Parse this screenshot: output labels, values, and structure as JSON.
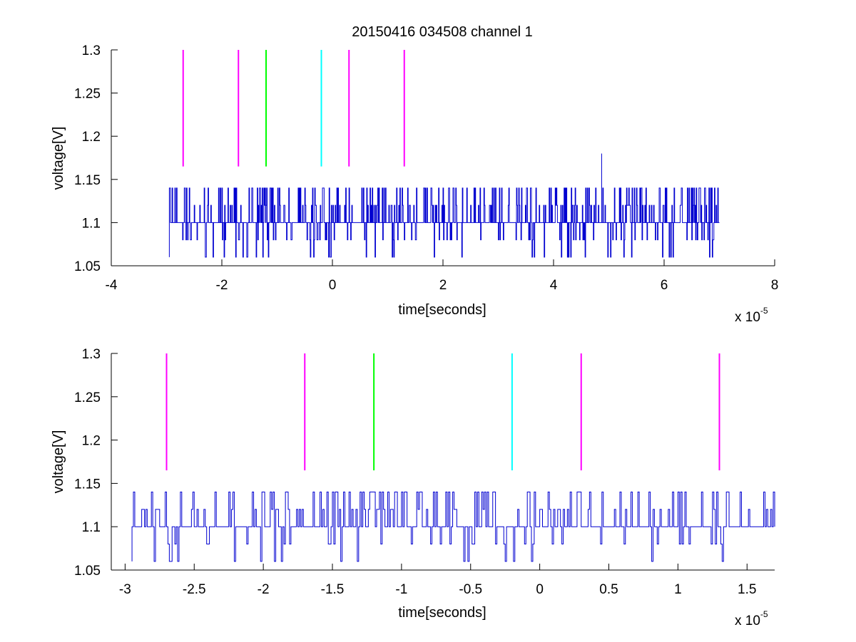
{
  "chart_data": [
    {
      "type": "line",
      "title": "20150416 034508 channel 1",
      "xlabel": "time[seconds]",
      "ylabel": "voltage[V]",
      "x_multiplier_label": "x 10",
      "x_multiplier_exponent": "-5",
      "xlim": [
        -4e-05,
        8e-05
      ],
      "ylim": [
        1.05,
        1.3
      ],
      "xticks": [
        -4e-05,
        -2e-05,
        0,
        2e-05,
        4e-05,
        6e-05,
        8e-05
      ],
      "xtick_labels": [
        "-4",
        "-2",
        "0",
        "2",
        "4",
        "6",
        "8"
      ],
      "yticks": [
        1.05,
        1.1,
        1.15,
        1.2,
        1.25,
        1.3
      ],
      "ytick_labels": [
        "1.05",
        "1.1",
        "1.15",
        "1.2",
        "1.25",
        "1.3"
      ],
      "grid": false,
      "signal": {
        "color": "#0000d0",
        "x_start": -2.95e-05,
        "x_end": 7e-05,
        "levels": [
          1.06,
          1.08,
          1.1,
          1.12,
          1.14
        ],
        "spike": {
          "x": 4.87e-05,
          "y": 1.18
        }
      },
      "markers": [
        {
          "x": -2.7e-05,
          "y_from": 1.165,
          "y_to": 1.3,
          "color": "#ff00ff"
        },
        {
          "x": -1.7e-05,
          "y_from": 1.165,
          "y_to": 1.3,
          "color": "#ff00ff"
        },
        {
          "x": -1.2e-05,
          "y_from": 1.165,
          "y_to": 1.3,
          "color": "#00ff00"
        },
        {
          "x": -2e-06,
          "y_from": 1.165,
          "y_to": 1.3,
          "color": "#00ffff"
        },
        {
          "x": 3e-06,
          "y_from": 1.165,
          "y_to": 1.3,
          "color": "#ff00ff"
        },
        {
          "x": 1.3e-05,
          "y_from": 1.165,
          "y_to": 1.3,
          "color": "#ff00ff"
        }
      ]
    },
    {
      "type": "line",
      "xlabel": "time[seconds]",
      "ylabel": "voltage[V]",
      "x_multiplier_label": "x 10",
      "x_multiplier_exponent": "-5",
      "xlim": [
        -3.1e-05,
        1.7e-05
      ],
      "ylim": [
        1.05,
        1.3
      ],
      "xticks": [
        -3e-05,
        -2.5e-05,
        -2e-05,
        -1.5e-05,
        -1e-05,
        -5e-06,
        0,
        5e-06,
        1e-05,
        1.5e-05
      ],
      "xtick_labels": [
        "-3",
        "-2.5",
        "-2",
        "-1.5",
        "-1",
        "-0.5",
        "0",
        "0.5",
        "1",
        "1.5"
      ],
      "yticks": [
        1.05,
        1.1,
        1.15,
        1.2,
        1.25,
        1.3
      ],
      "ytick_labels": [
        "1.05",
        "1.1",
        "1.15",
        "1.2",
        "1.25",
        "1.3"
      ],
      "grid": false,
      "signal": {
        "color": "#0000d0",
        "x_start": -2.95e-05,
        "x_end": 1.7e-05,
        "levels": [
          1.06,
          1.08,
          1.1,
          1.12,
          1.14
        ]
      },
      "markers": [
        {
          "x": -2.7e-05,
          "y_from": 1.165,
          "y_to": 1.3,
          "color": "#ff00ff"
        },
        {
          "x": -1.7e-05,
          "y_from": 1.165,
          "y_to": 1.3,
          "color": "#ff00ff"
        },
        {
          "x": -1.2e-05,
          "y_from": 1.165,
          "y_to": 1.3,
          "color": "#00ff00"
        },
        {
          "x": -2e-06,
          "y_from": 1.165,
          "y_to": 1.3,
          "color": "#00ffff"
        },
        {
          "x": 3e-06,
          "y_from": 1.165,
          "y_to": 1.3,
          "color": "#ff00ff"
        },
        {
          "x": 1.3e-05,
          "y_from": 1.165,
          "y_to": 1.3,
          "color": "#ff00ff"
        }
      ]
    }
  ]
}
